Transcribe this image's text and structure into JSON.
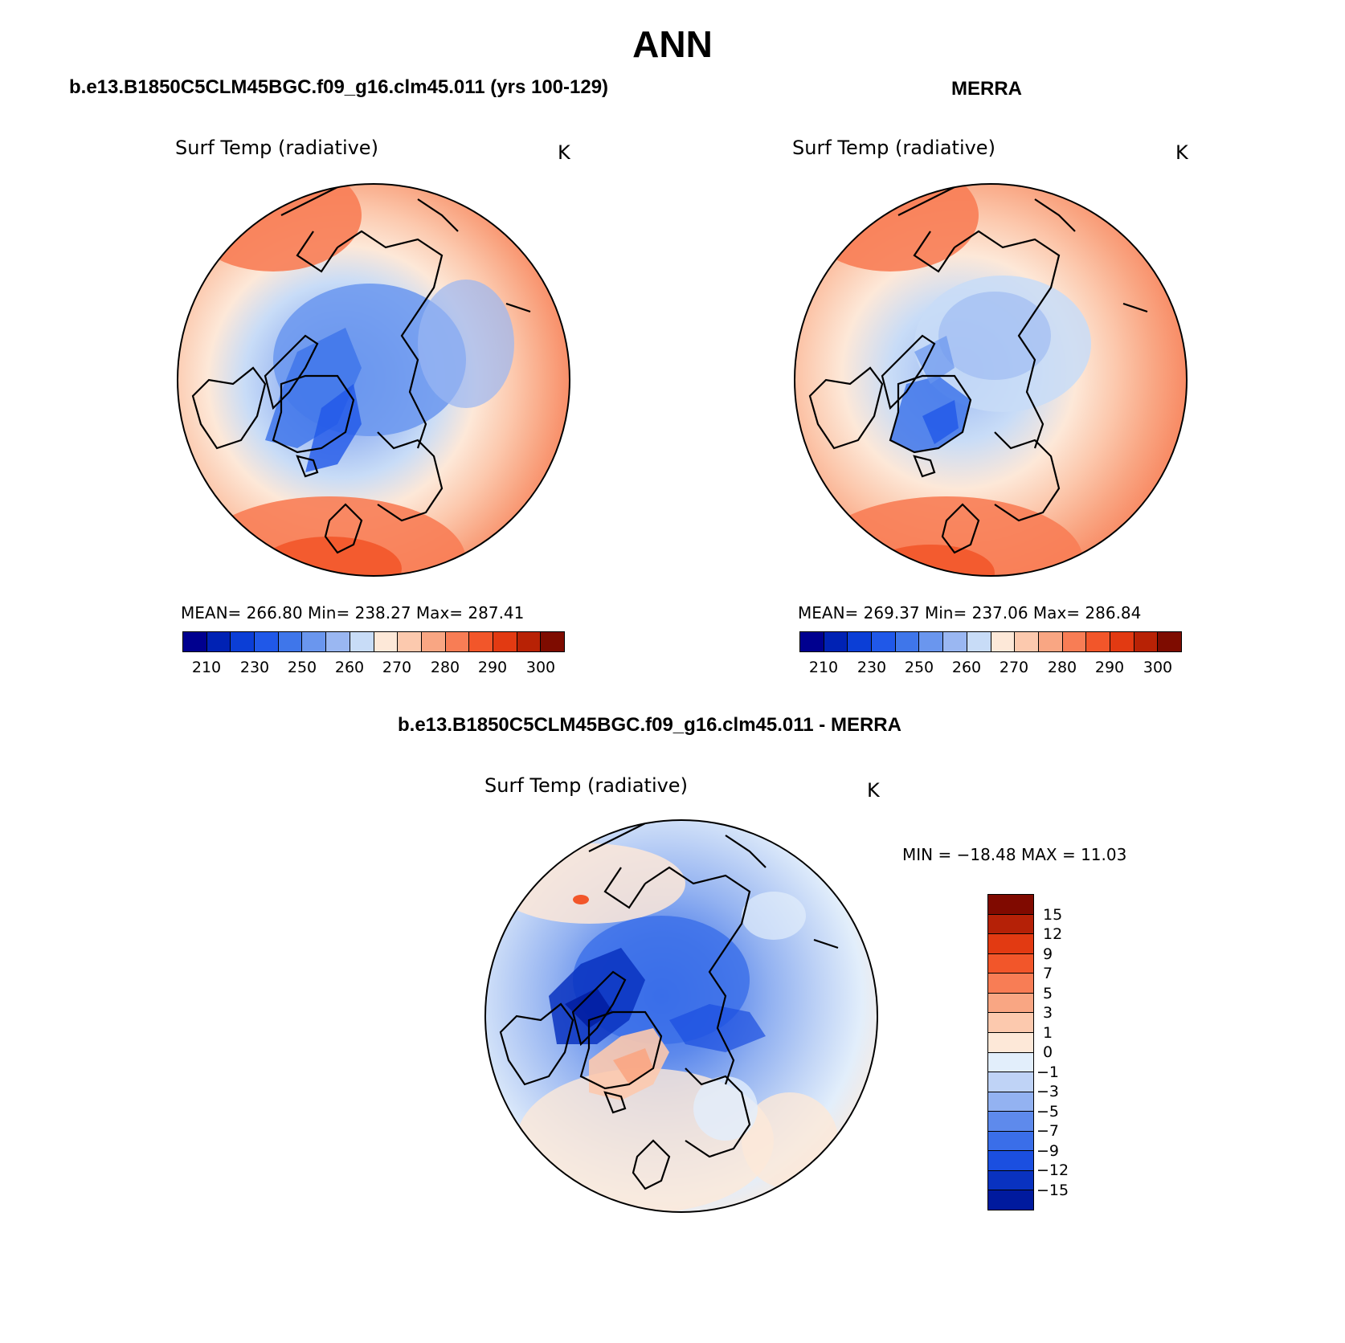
{
  "page_title": "ANN",
  "colors": {
    "abs_scale": [
      "#00008f",
      "#0022b4",
      "#0b3ed6",
      "#2058e8",
      "#3f76ea",
      "#6a96ee",
      "#9ab7f2",
      "#c8dcf7",
      "#fde8d8",
      "#fcc9ae",
      "#f9a683",
      "#f87d55",
      "#f2562a",
      "#e23a12",
      "#b82205",
      "#7e0c00"
    ],
    "diff_scale": [
      "#800a00",
      "#b52107",
      "#e23a12",
      "#f2562a",
      "#f87d55",
      "#f9a683",
      "#fcc9ae",
      "#fde8d8",
      "#e2eefb",
      "#bfd3f6",
      "#93b2f1",
      "#5e8aec",
      "#3a6ee9",
      "#1b4fe0",
      "#0932c0",
      "#001a9e",
      "#00008f"
    ]
  },
  "panels": {
    "model": {
      "title": "b.e13.B1850C5CLM45BGC.f09_g16.clm45.011 (yrs 100-129)",
      "variable": "Surf Temp (radiative)",
      "units": "K",
      "stats_text": "MEAN= 266.80   Min= 238.27   Max= 287.41"
    },
    "obs": {
      "title": "MERRA",
      "variable": "Surf Temp (radiative)",
      "units": "K",
      "stats_text": "MEAN= 269.37   Min= 237.06   Max= 286.84"
    },
    "diff": {
      "title": "b.e13.B1850C5CLM45BGC.f09_g16.clm45.011 - MERRA",
      "variable": "Surf Temp (radiative)",
      "units": "K",
      "stats_text": "MIN = −18.48 MAX =   11.03"
    }
  },
  "abs_colorbar_ticks": [
    "210",
    "230",
    "250",
    "260",
    "270",
    "280",
    "290",
    "300"
  ],
  "diff_colorbar_ticks": [
    "15",
    "12",
    "9",
    "7",
    "5",
    "3",
    "1",
    "0",
    "−1",
    "−3",
    "−5",
    "−7",
    "−9",
    "−12",
    "−15"
  ],
  "chart_data": [
    {
      "type": "heatmap",
      "projection": "north polar stereographic",
      "title": "b.e13.B1850C5CLM45BGC.f09_g16.clm45.011 (yrs 100-129)",
      "variable": "Surf Temp (radiative)",
      "units": "K",
      "mean": 266.8,
      "min": 238.27,
      "max": 287.41,
      "contour_levels": [
        210,
        220,
        230,
        240,
        250,
        255,
        260,
        265,
        270,
        275,
        280,
        285,
        290,
        295,
        300
      ],
      "colorbar_tick_labels": [
        210,
        230,
        250,
        260,
        270,
        280,
        290,
        300
      ]
    },
    {
      "type": "heatmap",
      "projection": "north polar stereographic",
      "title": "MERRA",
      "variable": "Surf Temp (radiative)",
      "units": "K",
      "mean": 269.37,
      "min": 237.06,
      "max": 286.84,
      "contour_levels": [
        210,
        220,
        230,
        240,
        250,
        255,
        260,
        265,
        270,
        275,
        280,
        285,
        290,
        295,
        300
      ],
      "colorbar_tick_labels": [
        210,
        230,
        250,
        260,
        270,
        280,
        290,
        300
      ]
    },
    {
      "type": "heatmap",
      "projection": "north polar stereographic",
      "title": "b.e13.B1850C5CLM45BGC.f09_g16.clm45.011 - MERRA",
      "variable": "Surf Temp (radiative)",
      "units": "K",
      "min": -18.48,
      "max": 11.03,
      "contour_levels": [
        -15,
        -12,
        -9,
        -7,
        -5,
        -3,
        -1,
        0,
        1,
        3,
        5,
        7,
        9,
        12,
        15
      ],
      "colorbar_tick_labels": [
        15,
        12,
        9,
        7,
        5,
        3,
        1,
        0,
        -1,
        -3,
        -5,
        -7,
        -9,
        -12,
        -15
      ]
    }
  ]
}
